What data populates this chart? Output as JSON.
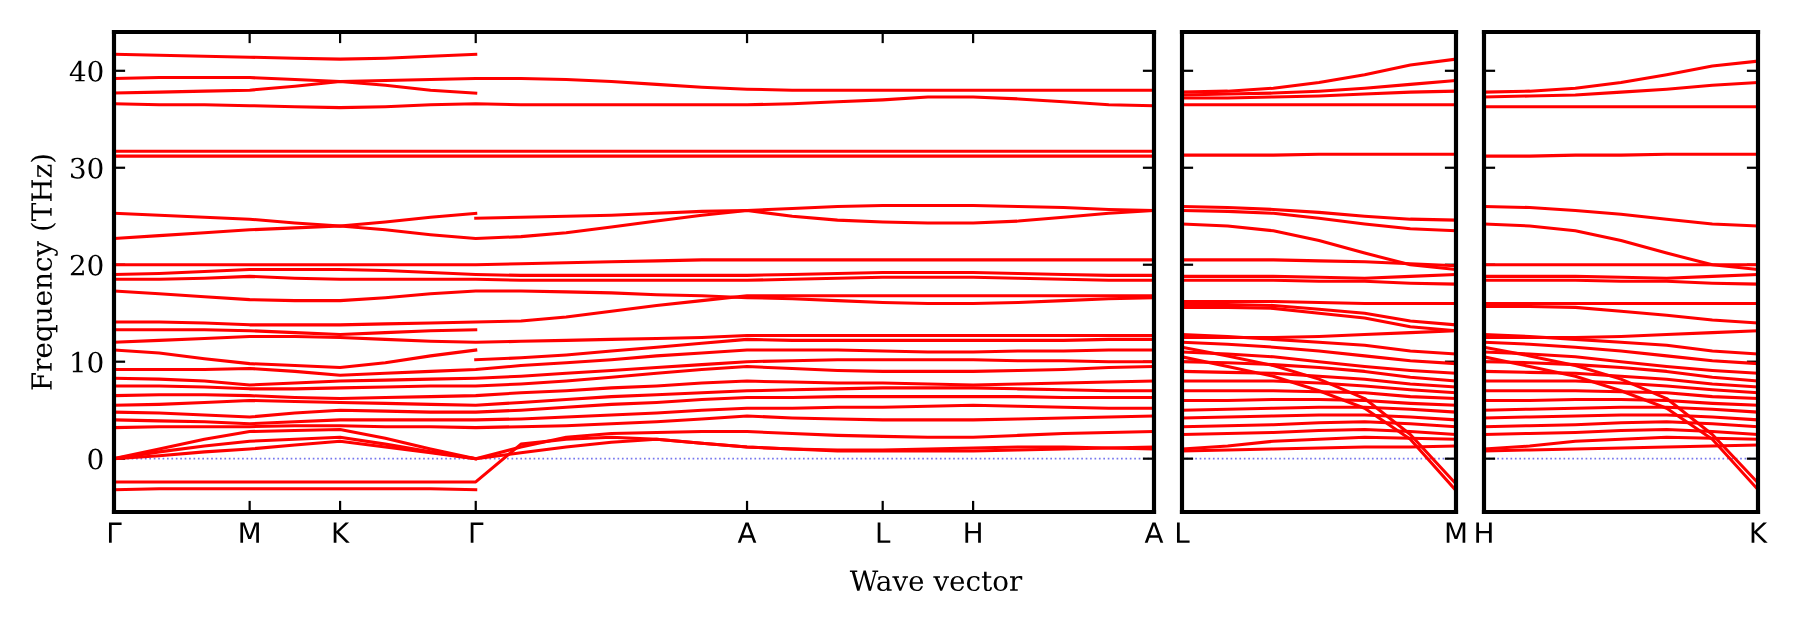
{
  "chart_data": [
    {
      "type": "line",
      "ylabel": "Frequency (THz)",
      "xlabel": "Wave vector",
      "ylim": [
        -5.5,
        44
      ],
      "yticks": [
        0,
        10,
        20,
        30,
        40
      ],
      "categories": [
        "Γ",
        null,
        null,
        "M",
        null,
        "K",
        null,
        null,
        "Γ",
        null,
        null,
        null,
        null,
        null,
        "A",
        null,
        null,
        "L",
        null,
        "H",
        null,
        null,
        null,
        "A"
      ],
      "ref_lines": [
        {
          "axis": "y",
          "value": 0,
          "color": "#7777ee",
          "line_style": "dotted"
        }
      ],
      "series": [
        {
          "color": "#ff0000",
          "values": [
            41.7,
            41.6,
            41.5,
            41.4,
            41.3,
            41.2,
            41.3,
            41.5,
            41.7,
            null,
            null,
            null,
            null,
            null,
            null,
            null,
            null,
            null,
            null,
            null,
            null,
            null,
            null,
            null
          ]
        },
        {
          "color": "#ff0000",
          "values": [
            39.2,
            39.3,
            39.3,
            39.3,
            39.1,
            38.9,
            39.0,
            39.1,
            39.2,
            39.2,
            39.1,
            38.9,
            38.6,
            38.3,
            38.1,
            38.0,
            38.0,
            38.0,
            38.0,
            38.0,
            38.0,
            38.0,
            38.0,
            38.0
          ]
        },
        {
          "color": "#ff0000",
          "values": [
            37.7,
            37.8,
            37.9,
            38.0,
            38.4,
            38.9,
            38.5,
            38.0,
            37.7,
            null,
            null,
            null,
            null,
            null,
            null,
            null,
            null,
            null,
            null,
            null,
            null,
            null,
            null,
            null
          ]
        },
        {
          "color": "#ff0000",
          "values": [
            36.6,
            36.5,
            36.5,
            36.4,
            36.3,
            36.2,
            36.3,
            36.5,
            36.6,
            36.5,
            36.5,
            36.5,
            36.5,
            36.5,
            36.5,
            36.6,
            36.8,
            37.0,
            37.3,
            37.3,
            37.1,
            36.8,
            36.5,
            36.4
          ]
        },
        {
          "color": "#ff0000",
          "values": [
            31.7,
            31.7,
            31.7,
            31.7,
            31.7,
            31.7,
            31.7,
            31.7,
            31.7,
            31.7,
            31.7,
            31.7,
            31.7,
            31.7,
            31.7,
            31.7,
            31.7,
            31.7,
            31.7,
            31.7,
            31.7,
            31.7,
            31.7,
            31.7
          ]
        },
        {
          "color": "#ff0000",
          "values": [
            31.2,
            31.2,
            31.2,
            31.2,
            31.2,
            31.2,
            31.2,
            31.2,
            31.2,
            31.2,
            31.2,
            31.2,
            31.2,
            31.2,
            31.2,
            31.2,
            31.2,
            31.2,
            31.2,
            31.2,
            31.2,
            31.2,
            31.2,
            31.2
          ]
        },
        {
          "color": "#ff0000",
          "values": [
            25.3,
            25.1,
            24.9,
            24.7,
            24.3,
            24.0,
            24.4,
            24.9,
            25.3,
            null,
            null,
            null,
            null,
            null,
            null,
            null,
            null,
            null,
            null,
            null,
            null,
            null,
            null,
            null
          ]
        },
        {
          "color": "#ff0000",
          "values": [
            null,
            null,
            null,
            null,
            null,
            null,
            null,
            null,
            24.8,
            24.9,
            25.0,
            25.1,
            25.3,
            25.5,
            25.6,
            25.8,
            26.0,
            26.1,
            26.1,
            26.1,
            26.0,
            25.9,
            25.7,
            25.6
          ]
        },
        {
          "color": "#ff0000",
          "values": [
            22.7,
            23.0,
            23.3,
            23.6,
            23.8,
            24.0,
            23.6,
            23.1,
            22.7,
            22.9,
            23.3,
            23.9,
            24.5,
            25.1,
            25.6,
            25.0,
            24.6,
            24.4,
            24.3,
            24.3,
            24.5,
            24.9,
            25.3,
            25.6
          ]
        },
        {
          "color": "#ff0000",
          "values": [
            20.0,
            20.0,
            20.0,
            20.0,
            20.0,
            20.0,
            20.0,
            20.0,
            20.0,
            20.1,
            20.2,
            20.3,
            20.4,
            20.5,
            20.5,
            20.5,
            20.5,
            20.5,
            20.5,
            20.5,
            20.5,
            20.5,
            20.5,
            20.5
          ]
        },
        {
          "color": "#ff0000",
          "values": [
            19.0,
            19.1,
            19.3,
            19.5,
            19.5,
            19.5,
            19.4,
            19.2,
            19.0,
            18.9,
            18.9,
            18.9,
            18.9,
            18.9,
            18.9,
            19.0,
            19.1,
            19.2,
            19.2,
            19.2,
            19.1,
            19.0,
            18.9,
            18.9
          ]
        },
        {
          "color": "#ff0000",
          "values": [
            18.5,
            18.5,
            18.6,
            18.8,
            18.6,
            18.5,
            18.5,
            18.5,
            18.5,
            18.4,
            18.4,
            18.4,
            18.4,
            18.4,
            18.4,
            18.5,
            18.6,
            18.7,
            18.7,
            18.7,
            18.6,
            18.5,
            18.4,
            18.4
          ]
        },
        {
          "color": "#ff0000",
          "values": [
            17.3,
            17.0,
            16.7,
            16.4,
            16.3,
            16.3,
            16.6,
            17.0,
            17.3,
            17.3,
            17.2,
            17.1,
            16.9,
            16.8,
            16.6,
            16.5,
            16.3,
            16.1,
            16.0,
            16.0,
            16.1,
            16.3,
            16.5,
            16.6
          ]
        },
        {
          "color": "#ff0000",
          "values": [
            14.1,
            14.1,
            14.0,
            13.8,
            13.8,
            13.8,
            13.9,
            14.0,
            14.1,
            14.2,
            14.6,
            15.2,
            15.8,
            16.3,
            16.8,
            16.8,
            16.8,
            16.8,
            16.8,
            16.8,
            16.8,
            16.8,
            16.8,
            16.8
          ]
        },
        {
          "color": "#ff0000",
          "values": [
            13.3,
            13.3,
            13.3,
            13.2,
            13.0,
            12.8,
            13.0,
            13.2,
            13.3,
            null,
            null,
            null,
            null,
            null,
            null,
            null,
            null,
            null,
            null,
            null,
            null,
            null,
            null,
            null
          ]
        },
        {
          "color": "#ff0000",
          "values": [
            12.0,
            12.2,
            12.4,
            12.6,
            12.6,
            12.5,
            12.3,
            12.1,
            12.0,
            12.1,
            12.2,
            12.3,
            12.4,
            12.5,
            12.7,
            12.7,
            12.7,
            12.7,
            12.7,
            12.7,
            12.7,
            12.7,
            12.7,
            12.7
          ]
        },
        {
          "color": "#ff0000",
          "values": [
            11.2,
            10.9,
            10.3,
            9.8,
            9.6,
            9.4,
            9.9,
            10.6,
            11.2,
            null,
            null,
            null,
            null,
            null,
            null,
            null,
            null,
            null,
            null,
            null,
            null,
            null,
            null,
            null
          ]
        },
        {
          "color": "#ff0000",
          "values": [
            null,
            null,
            null,
            null,
            null,
            null,
            null,
            null,
            10.2,
            10.4,
            10.7,
            11.1,
            11.5,
            11.9,
            12.3,
            12.2,
            12.2,
            12.2,
            12.2,
            12.2,
            12.2,
            12.2,
            12.3,
            12.3
          ]
        },
        {
          "color": "#ff0000",
          "values": [
            9.2,
            9.2,
            9.2,
            9.3,
            9.0,
            8.6,
            8.8,
            9.0,
            9.2,
            9.6,
            9.9,
            10.2,
            10.6,
            10.9,
            11.2,
            11.2,
            11.2,
            11.1,
            11.0,
            11.0,
            11.1,
            11.1,
            11.2,
            11.2
          ]
        },
        {
          "color": "#ff0000",
          "values": [
            8.3,
            8.2,
            8.0,
            7.6,
            7.8,
            8.0,
            8.1,
            8.2,
            8.3,
            8.5,
            8.8,
            9.1,
            9.4,
            9.7,
            10.0,
            10.1,
            10.2,
            10.2,
            10.2,
            10.2,
            10.1,
            10.1,
            10.0,
            10.0
          ]
        },
        {
          "color": "#ff0000",
          "values": [
            7.5,
            7.5,
            7.4,
            7.2,
            7.2,
            7.3,
            7.4,
            7.5,
            7.5,
            7.7,
            8.0,
            8.4,
            8.8,
            9.2,
            9.5,
            9.3,
            9.1,
            9.0,
            9.0,
            9.0,
            9.1,
            9.2,
            9.4,
            9.5
          ]
        },
        {
          "color": "#ff0000",
          "values": [
            6.5,
            6.6,
            6.6,
            6.5,
            6.3,
            6.2,
            6.3,
            6.4,
            6.5,
            6.8,
            7.0,
            7.3,
            7.5,
            7.8,
            8.0,
            7.9,
            7.8,
            7.8,
            7.7,
            7.6,
            7.7,
            7.8,
            7.9,
            8.0
          ]
        },
        {
          "color": "#ff0000",
          "values": [
            5.5,
            5.6,
            5.8,
            6.0,
            5.9,
            5.8,
            5.7,
            5.6,
            5.5,
            5.8,
            6.1,
            6.4,
            6.6,
            6.8,
            7.0,
            7.1,
            7.2,
            7.3,
            7.3,
            7.3,
            7.2,
            7.1,
            7.0,
            7.0
          ]
        },
        {
          "color": "#ff0000",
          "values": [
            4.8,
            4.7,
            4.5,
            4.3,
            4.7,
            5.0,
            4.9,
            4.8,
            4.8,
            5.0,
            5.3,
            5.6,
            5.8,
            6.1,
            6.3,
            6.3,
            6.4,
            6.4,
            6.4,
            6.4,
            6.4,
            6.3,
            6.3,
            6.3
          ]
        },
        {
          "color": "#ff0000",
          "values": [
            4.0,
            3.9,
            3.8,
            3.6,
            3.8,
            4.0,
            4.0,
            4.0,
            4.0,
            4.1,
            4.3,
            4.5,
            4.7,
            5.0,
            5.2,
            5.2,
            5.3,
            5.3,
            5.4,
            5.5,
            5.4,
            5.3,
            5.2,
            5.2
          ]
        },
        {
          "color": "#ff0000",
          "values": [
            3.2,
            3.3,
            3.3,
            3.3,
            3.4,
            3.4,
            3.3,
            3.3,
            3.2,
            3.3,
            3.4,
            3.6,
            3.8,
            4.1,
            4.4,
            4.2,
            4.1,
            4.0,
            4.0,
            4.0,
            4.1,
            4.2,
            4.3,
            4.4
          ]
        },
        {
          "color": "#ff0000",
          "values": [
            0,
            1.0,
            2.0,
            2.8,
            2.9,
            3.0,
            2.1,
            1.0,
            0,
            1.2,
            2.2,
            2.6,
            2.7,
            2.8,
            2.8,
            2.6,
            2.4,
            2.3,
            2.2,
            2.2,
            2.4,
            2.6,
            2.7,
            2.8
          ]
        },
        {
          "color": "#ff0000",
          "values": [
            0,
            0.7,
            1.3,
            1.8,
            2.0,
            2.2,
            1.5,
            0.7,
            0,
            0.6,
            1.2,
            1.7,
            2.0,
            1.6,
            1.2,
            1.0,
            0.9,
            0.9,
            1.0,
            1.1,
            1.2,
            1.2,
            1.1,
            1.0
          ]
        },
        {
          "color": "#ff0000",
          "values": [
            0,
            0.3,
            0.7,
            1.0,
            1.4,
            1.8,
            1.2,
            0.6,
            0,
            null,
            null,
            null,
            null,
            null,
            null,
            null,
            null,
            null,
            null,
            null,
            null,
            null,
            null,
            null
          ]
        },
        {
          "color": "#ff0000",
          "values": [
            -2.4,
            -2.4,
            -2.4,
            -2.4,
            -2.4,
            -2.4,
            -2.4,
            -2.4,
            -2.4,
            1.5,
            2.0,
            2.2,
            2.0,
            1.6,
            1.2,
            1.0,
            0.8,
            0.8,
            0.8,
            0.8,
            0.9,
            1.0,
            1.1,
            1.2
          ]
        },
        {
          "color": "#ff0000",
          "values": [
            -3.2,
            -3.1,
            -3.1,
            -3.1,
            -3.1,
            -3.1,
            -3.1,
            -3.1,
            -3.2,
            null,
            null,
            null,
            null,
            null,
            null,
            null,
            null,
            null,
            null,
            null,
            null,
            null,
            null,
            null
          ]
        }
      ]
    },
    {
      "type": "line",
      "tick_labels": "x",
      "ylim": [
        -5.5,
        44
      ],
      "yticks": [
        0,
        10,
        20,
        30,
        40
      ],
      "categories": [
        "L",
        null,
        null,
        null,
        null,
        null,
        "M"
      ],
      "ref_lines": [
        {
          "axis": "y",
          "value": 0,
          "color": "#7777ee",
          "line_style": "dotted"
        }
      ],
      "series": [
        {
          "color": "#ff0000",
          "values": [
            37.8,
            37.9,
            38.2,
            38.8,
            39.6,
            40.6,
            41.2
          ]
        },
        {
          "color": "#ff0000",
          "values": [
            37.5,
            37.6,
            37.7,
            37.9,
            38.2,
            38.6,
            39.0
          ]
        },
        {
          "color": "#ff0000",
          "values": [
            37.2,
            37.2,
            37.3,
            37.4,
            37.6,
            37.8,
            37.9
          ]
        },
        {
          "color": "#ff0000",
          "values": [
            36.5,
            36.5,
            36.5,
            36.5,
            36.5,
            36.5,
            36.5
          ]
        },
        {
          "color": "#ff0000",
          "values": [
            31.3,
            31.3,
            31.3,
            31.4,
            31.4,
            31.4,
            31.4
          ]
        },
        {
          "color": "#ff0000",
          "values": [
            26.0,
            25.9,
            25.7,
            25.4,
            25.0,
            24.7,
            24.6
          ]
        },
        {
          "color": "#ff0000",
          "values": [
            25.6,
            25.5,
            25.3,
            24.8,
            24.2,
            23.7,
            23.5
          ]
        },
        {
          "color": "#ff0000",
          "values": [
            24.2,
            24.0,
            23.5,
            22.5,
            21.2,
            20.0,
            19.5
          ]
        },
        {
          "color": "#ff0000",
          "values": [
            20.5,
            20.5,
            20.5,
            20.4,
            20.3,
            20.1,
            19.9
          ]
        },
        {
          "color": "#ff0000",
          "values": [
            18.8,
            18.8,
            18.8,
            18.7,
            18.6,
            18.8,
            19.0
          ]
        },
        {
          "color": "#ff0000",
          "values": [
            18.4,
            18.4,
            18.4,
            18.3,
            18.3,
            18.1,
            18.0
          ]
        },
        {
          "color": "#ff0000",
          "values": [
            16.2,
            16.2,
            16.2,
            16.1,
            16.0,
            16.0,
            16.0
          ]
        },
        {
          "color": "#ff0000",
          "values": [
            15.9,
            15.9,
            15.8,
            15.4,
            15.0,
            14.2,
            13.8
          ]
        },
        {
          "color": "#ff0000",
          "values": [
            15.6,
            15.6,
            15.5,
            15.0,
            14.5,
            13.6,
            13.2
          ]
        },
        {
          "color": "#ff0000",
          "values": [
            12.5,
            12.5,
            12.5,
            12.6,
            12.8,
            13.0,
            13.2
          ]
        },
        {
          "color": "#ff0000",
          "values": [
            12.8,
            12.6,
            12.3,
            12.0,
            11.7,
            11.1,
            10.8
          ]
        },
        {
          "color": "#ff0000",
          "values": [
            12.0,
            11.8,
            11.5,
            11.1,
            10.6,
            10.1,
            9.8
          ]
        },
        {
          "color": "#ff0000",
          "values": [
            11.0,
            10.8,
            10.5,
            10.0,
            9.5,
            9.1,
            8.8
          ]
        },
        {
          "color": "#ff0000",
          "values": [
            10.0,
            9.9,
            9.7,
            9.4,
            9.0,
            8.4,
            8.0
          ]
        },
        {
          "color": "#ff0000",
          "values": [
            9.0,
            8.9,
            8.8,
            8.5,
            8.2,
            7.7,
            7.4
          ]
        },
        {
          "color": "#ff0000",
          "values": [
            8.0,
            8.0,
            8.0,
            7.8,
            7.5,
            7.1,
            6.8
          ]
        },
        {
          "color": "#ff0000",
          "values": [
            7.0,
            7.0,
            7.0,
            6.9,
            6.8,
            6.4,
            6.2
          ]
        },
        {
          "color": "#ff0000",
          "values": [
            6.0,
            6.0,
            6.1,
            6.1,
            6.0,
            5.7,
            5.5
          ]
        },
        {
          "color": "#ff0000",
          "values": [
            5.0,
            5.1,
            5.2,
            5.3,
            5.3,
            5.1,
            4.8
          ]
        },
        {
          "color": "#ff0000",
          "values": [
            4.2,
            4.3,
            4.4,
            4.5,
            4.5,
            4.3,
            4.0
          ]
        },
        {
          "color": "#ff0000",
          "values": [
            3.3,
            3.4,
            3.5,
            3.7,
            3.8,
            3.6,
            3.3
          ]
        },
        {
          "color": "#ff0000",
          "values": [
            2.5,
            2.6,
            2.7,
            2.9,
            3.0,
            2.8,
            2.5
          ]
        },
        {
          "color": "#ff0000",
          "values": [
            1.0,
            1.3,
            1.8,
            2.0,
            2.2,
            2.1,
            2.0
          ]
        },
        {
          "color": "#ff0000",
          "values": [
            0.8,
            0.9,
            1.0,
            1.1,
            1.2,
            1.2,
            1.3
          ]
        },
        {
          "color": "#ff0000",
          "values": [
            11.5,
            10.6,
            9.6,
            8.2,
            6.2,
            2.5,
            -2.6
          ]
        },
        {
          "color": "#ff0000",
          "values": [
            10.5,
            9.5,
            8.5,
            7.0,
            5.2,
            2.0,
            -3.3
          ]
        }
      ]
    },
    {
      "type": "line",
      "tick_labels": "x",
      "ylim": [
        -5.5,
        44
      ],
      "yticks": [
        0,
        10,
        20,
        30,
        40
      ],
      "categories": [
        "H",
        null,
        null,
        null,
        null,
        null,
        "K"
      ],
      "ref_lines": [
        {
          "axis": "y",
          "value": 0,
          "color": "#7777ee",
          "line_style": "dotted"
        }
      ],
      "series": [
        {
          "color": "#ff0000",
          "values": [
            37.8,
            37.9,
            38.2,
            38.8,
            39.6,
            40.5,
            41.0
          ]
        },
        {
          "color": "#ff0000",
          "values": [
            37.3,
            37.4,
            37.5,
            37.8,
            38.1,
            38.5,
            38.8
          ]
        },
        {
          "color": "#ff0000",
          "values": [
            36.3,
            36.3,
            36.3,
            36.3,
            36.3,
            36.3,
            36.3
          ]
        },
        {
          "color": "#ff0000",
          "values": [
            31.2,
            31.2,
            31.3,
            31.3,
            31.4,
            31.4,
            31.4
          ]
        },
        {
          "color": "#ff0000",
          "values": [
            26.0,
            25.9,
            25.6,
            25.2,
            24.7,
            24.2,
            24.0
          ]
        },
        {
          "color": "#ff0000",
          "values": [
            24.2,
            24.0,
            23.5,
            22.5,
            21.2,
            20.0,
            19.5
          ]
        },
        {
          "color": "#ff0000",
          "values": [
            20.0,
            20.0,
            20.0,
            20.0,
            20.0,
            20.0,
            20.0
          ]
        },
        {
          "color": "#ff0000",
          "values": [
            18.8,
            18.8,
            18.8,
            18.7,
            18.6,
            18.8,
            19.0
          ]
        },
        {
          "color": "#ff0000",
          "values": [
            18.4,
            18.4,
            18.4,
            18.3,
            18.3,
            18.1,
            18.0
          ]
        },
        {
          "color": "#ff0000",
          "values": [
            16.0,
            16.0,
            16.0,
            16.0,
            16.0,
            16.0,
            16.0
          ]
        },
        {
          "color": "#ff0000",
          "values": [
            15.7,
            15.7,
            15.6,
            15.2,
            14.8,
            14.3,
            14.0
          ]
        },
        {
          "color": "#ff0000",
          "values": [
            12.5,
            12.5,
            12.5,
            12.6,
            12.8,
            13.0,
            13.2
          ]
        },
        {
          "color": "#ff0000",
          "values": [
            12.8,
            12.6,
            12.3,
            12.0,
            11.7,
            11.1,
            10.8
          ]
        },
        {
          "color": "#ff0000",
          "values": [
            12.0,
            11.8,
            11.5,
            11.1,
            10.6,
            10.1,
            9.8
          ]
        },
        {
          "color": "#ff0000",
          "values": [
            11.0,
            10.8,
            10.5,
            10.0,
            9.5,
            9.1,
            8.8
          ]
        },
        {
          "color": "#ff0000",
          "values": [
            10.0,
            9.9,
            9.7,
            9.4,
            9.0,
            8.4,
            8.0
          ]
        },
        {
          "color": "#ff0000",
          "values": [
            9.0,
            8.9,
            8.8,
            8.5,
            8.2,
            7.7,
            7.4
          ]
        },
        {
          "color": "#ff0000",
          "values": [
            8.0,
            8.0,
            8.0,
            7.8,
            7.5,
            7.1,
            6.8
          ]
        },
        {
          "color": "#ff0000",
          "values": [
            7.0,
            7.0,
            7.0,
            6.9,
            6.8,
            6.4,
            6.2
          ]
        },
        {
          "color": "#ff0000",
          "values": [
            6.0,
            6.0,
            6.1,
            6.1,
            6.0,
            5.7,
            5.5
          ]
        },
        {
          "color": "#ff0000",
          "values": [
            5.0,
            5.1,
            5.2,
            5.3,
            5.3,
            5.1,
            4.8
          ]
        },
        {
          "color": "#ff0000",
          "values": [
            4.2,
            4.3,
            4.4,
            4.5,
            4.5,
            4.3,
            4.0
          ]
        },
        {
          "color": "#ff0000",
          "values": [
            3.3,
            3.4,
            3.5,
            3.7,
            3.8,
            3.6,
            3.3
          ]
        },
        {
          "color": "#ff0000",
          "values": [
            2.5,
            2.6,
            2.7,
            2.9,
            3.0,
            2.8,
            2.5
          ]
        },
        {
          "color": "#ff0000",
          "values": [
            1.0,
            1.3,
            1.8,
            2.0,
            2.2,
            2.1,
            2.0
          ]
        },
        {
          "color": "#ff0000",
          "values": [
            0.8,
            0.9,
            1.0,
            1.1,
            1.2,
            1.3,
            1.4
          ]
        },
        {
          "color": "#ff0000",
          "values": [
            11.5,
            10.6,
            9.6,
            8.2,
            6.2,
            2.5,
            -2.5
          ]
        },
        {
          "color": "#ff0000",
          "values": [
            10.5,
            9.5,
            8.5,
            7.0,
            5.2,
            2.0,
            -3.2
          ]
        }
      ]
    }
  ]
}
